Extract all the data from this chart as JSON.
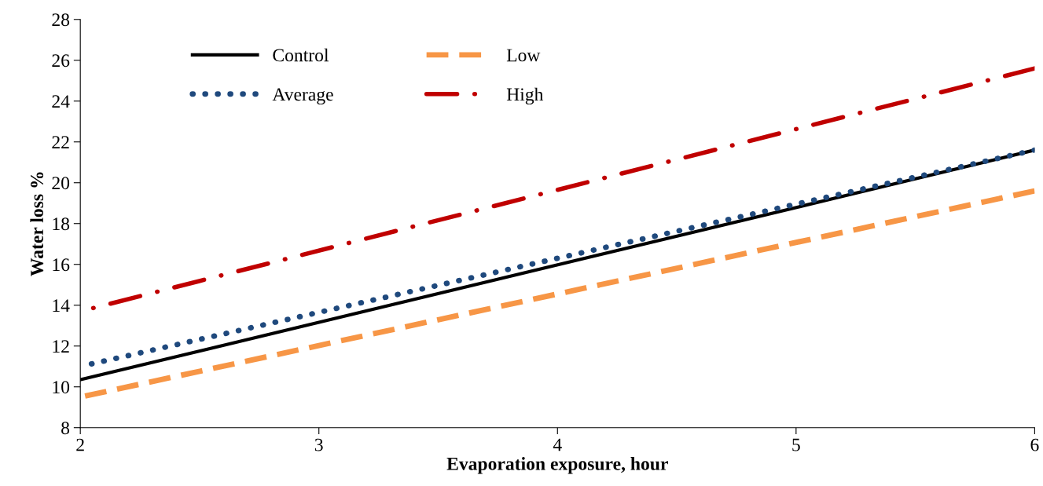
{
  "chart_data": {
    "type": "line",
    "xlabel": "Evaporation exposure, hour",
    "ylabel": "Water loss %",
    "x": [
      2,
      6
    ],
    "xlim": [
      2,
      6
    ],
    "xticks": [
      2,
      3,
      4,
      5,
      6
    ],
    "ylim": [
      8,
      28
    ],
    "yticks": [
      8,
      10,
      12,
      14,
      16,
      18,
      20,
      22,
      24,
      26,
      28
    ],
    "grid": false,
    "legend": "top left",
    "series": [
      {
        "name": "Control",
        "color": "#000000",
        "line_style": "solid",
        "values": [
          10.35,
          21.6
        ]
      },
      {
        "name": "Low",
        "color": "#f79646",
        "line_style": "dashed",
        "values": [
          9.5,
          19.6
        ]
      },
      {
        "name": "Average",
        "color": "#1f497d",
        "line_style": "dotted",
        "values": [
          11.0,
          21.6
        ]
      },
      {
        "name": "High",
        "color": "#c00000",
        "line_style": "dashdot",
        "values": [
          13.7,
          25.6
        ]
      }
    ]
  }
}
